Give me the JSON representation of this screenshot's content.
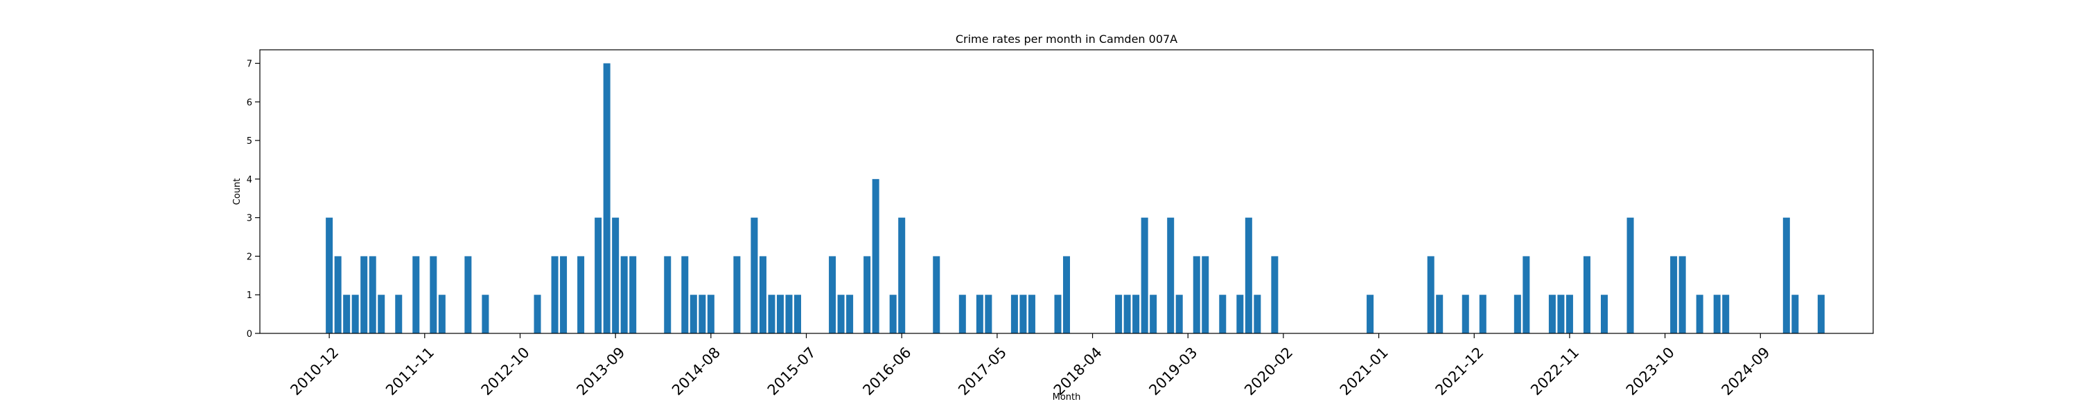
{
  "chart_data": {
    "type": "bar",
    "title": "Crime rates per month in Camden 007A",
    "xlabel": "Month",
    "ylabel": "Count",
    "ylim": [
      0,
      7.35
    ],
    "yticks": [
      0,
      1,
      2,
      3,
      4,
      5,
      6,
      7
    ],
    "xticks": [
      "2010-12",
      "2011-11",
      "2012-10",
      "2013-09",
      "2014-08",
      "2015-07",
      "2016-06",
      "2017-05",
      "2018-04",
      "2019-03",
      "2020-02",
      "2021-01",
      "2021-12",
      "2022-11",
      "2023-10",
      "2024-09"
    ],
    "bar_color": "#1f77b4",
    "grid": false,
    "legend": "none",
    "data": [
      {
        "month": "2010-12",
        "count": 3
      },
      {
        "month": "2011-01",
        "count": 2
      },
      {
        "month": "2011-02",
        "count": 1
      },
      {
        "month": "2011-03",
        "count": 1
      },
      {
        "month": "2011-04",
        "count": 2
      },
      {
        "month": "2011-05",
        "count": 2
      },
      {
        "month": "2011-06",
        "count": 1
      },
      {
        "month": "2011-08",
        "count": 1
      },
      {
        "month": "2011-10",
        "count": 2
      },
      {
        "month": "2011-12",
        "count": 2
      },
      {
        "month": "2012-01",
        "count": 1
      },
      {
        "month": "2012-04",
        "count": 2
      },
      {
        "month": "2012-06",
        "count": 1
      },
      {
        "month": "2012-12",
        "count": 1
      },
      {
        "month": "2013-02",
        "count": 2
      },
      {
        "month": "2013-03",
        "count": 2
      },
      {
        "month": "2013-05",
        "count": 2
      },
      {
        "month": "2013-07",
        "count": 3
      },
      {
        "month": "2013-08",
        "count": 7
      },
      {
        "month": "2013-09",
        "count": 3
      },
      {
        "month": "2013-10",
        "count": 2
      },
      {
        "month": "2013-11",
        "count": 2
      },
      {
        "month": "2014-03",
        "count": 2
      },
      {
        "month": "2014-05",
        "count": 2
      },
      {
        "month": "2014-06",
        "count": 1
      },
      {
        "month": "2014-07",
        "count": 1
      },
      {
        "month": "2014-08",
        "count": 1
      },
      {
        "month": "2014-11",
        "count": 2
      },
      {
        "month": "2015-01",
        "count": 3
      },
      {
        "month": "2015-02",
        "count": 2
      },
      {
        "month": "2015-03",
        "count": 1
      },
      {
        "month": "2015-04",
        "count": 1
      },
      {
        "month": "2015-05",
        "count": 1
      },
      {
        "month": "2015-06",
        "count": 1
      },
      {
        "month": "2015-10",
        "count": 2
      },
      {
        "month": "2015-11",
        "count": 1
      },
      {
        "month": "2015-12",
        "count": 1
      },
      {
        "month": "2016-02",
        "count": 2
      },
      {
        "month": "2016-03",
        "count": 4
      },
      {
        "month": "2016-05",
        "count": 1
      },
      {
        "month": "2016-06",
        "count": 3
      },
      {
        "month": "2016-10",
        "count": 2
      },
      {
        "month": "2017-01",
        "count": 1
      },
      {
        "month": "2017-03",
        "count": 1
      },
      {
        "month": "2017-04",
        "count": 1
      },
      {
        "month": "2017-07",
        "count": 1
      },
      {
        "month": "2017-08",
        "count": 1
      },
      {
        "month": "2017-09",
        "count": 1
      },
      {
        "month": "2017-12",
        "count": 1
      },
      {
        "month": "2018-01",
        "count": 2
      },
      {
        "month": "2018-07",
        "count": 1
      },
      {
        "month": "2018-08",
        "count": 1
      },
      {
        "month": "2018-09",
        "count": 1
      },
      {
        "month": "2018-10",
        "count": 3
      },
      {
        "month": "2018-11",
        "count": 1
      },
      {
        "month": "2019-01",
        "count": 3
      },
      {
        "month": "2019-02",
        "count": 1
      },
      {
        "month": "2019-04",
        "count": 2
      },
      {
        "month": "2019-05",
        "count": 2
      },
      {
        "month": "2019-07",
        "count": 1
      },
      {
        "month": "2019-09",
        "count": 1
      },
      {
        "month": "2019-10",
        "count": 3
      },
      {
        "month": "2019-11",
        "count": 1
      },
      {
        "month": "2020-01",
        "count": 2
      },
      {
        "month": "2020-12",
        "count": 1
      },
      {
        "month": "2021-07",
        "count": 2
      },
      {
        "month": "2021-08",
        "count": 1
      },
      {
        "month": "2021-11",
        "count": 1
      },
      {
        "month": "2022-01",
        "count": 1
      },
      {
        "month": "2022-05",
        "count": 1
      },
      {
        "month": "2022-06",
        "count": 2
      },
      {
        "month": "2022-09",
        "count": 1
      },
      {
        "month": "2022-10",
        "count": 1
      },
      {
        "month": "2022-11",
        "count": 1
      },
      {
        "month": "2023-01",
        "count": 2
      },
      {
        "month": "2023-03",
        "count": 1
      },
      {
        "month": "2023-06",
        "count": 3
      },
      {
        "month": "2023-11",
        "count": 2
      },
      {
        "month": "2023-12",
        "count": 2
      },
      {
        "month": "2024-02",
        "count": 1
      },
      {
        "month": "2024-04",
        "count": 1
      },
      {
        "month": "2024-05",
        "count": 1
      },
      {
        "month": "2024-12",
        "count": 3
      },
      {
        "month": "2025-01",
        "count": 1
      },
      {
        "month": "2025-04",
        "count": 1
      }
    ]
  }
}
